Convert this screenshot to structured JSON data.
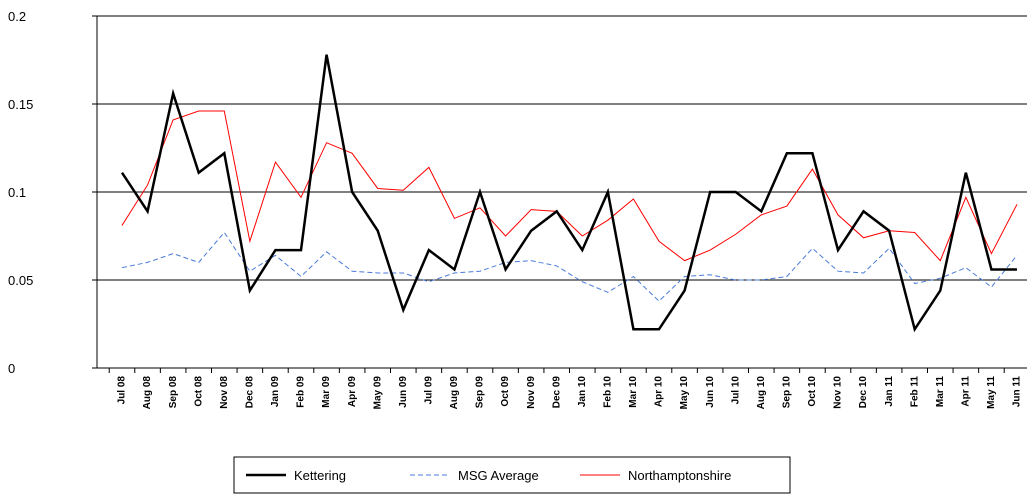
{
  "chart_data": {
    "type": "line",
    "categories": [
      "Jul 08",
      "Aug 08",
      "Sep 08",
      "Oct 08",
      "Nov 08",
      "Dec 08",
      "Jan 09",
      "Feb 09",
      "Mar 09",
      "Apr 09",
      "May 09",
      "Jun 09",
      "Jul 09",
      "Aug 09",
      "Sep 09",
      "Oct 09",
      "Nov 09",
      "Dec 09",
      "Jan 10",
      "Feb 10",
      "Mar 10",
      "Apr 10",
      "May 10",
      "Jun 10",
      "Jul 10",
      "Aug 10",
      "Sep 10",
      "Oct 10",
      "Nov 10",
      "Dec 10",
      "Jan 11",
      "Feb 11",
      "Mar 11",
      "Apr 11",
      "May 11",
      "Jun 11"
    ],
    "series": [
      {
        "name": "Kettering",
        "color": "#000000",
        "line_width": 2.5,
        "dashed": false,
        "values": [
          0.111,
          0.089,
          0.156,
          0.111,
          0.122,
          0.044,
          0.067,
          0.067,
          0.178,
          0.1,
          0.078,
          0.033,
          0.067,
          0.056,
          0.1,
          0.056,
          0.078,
          0.089,
          0.067,
          0.1,
          0.022,
          0.022,
          0.044,
          0.1,
          0.1,
          0.089,
          0.122,
          0.122,
          0.067,
          0.089,
          0.078,
          0.022,
          0.044,
          0.111,
          0.056,
          0.056
        ]
      },
      {
        "name": "MSG Average",
        "color": "#4a7bd9",
        "line_width": 1,
        "dashed": true,
        "values": [
          0.057,
          0.06,
          0.065,
          0.06,
          0.077,
          0.055,
          0.064,
          0.052,
          0.066,
          0.055,
          0.054,
          0.054,
          0.049,
          0.054,
          0.055,
          0.06,
          0.061,
          0.058,
          0.049,
          0.043,
          0.052,
          0.038,
          0.052,
          0.053,
          0.05,
          0.05,
          0.052,
          0.068,
          0.055,
          0.054,
          0.068,
          0.048,
          0.051,
          0.057,
          0.046,
          0.064
        ]
      },
      {
        "name": "Northamptonshire",
        "color": "#ff0000",
        "line_width": 1,
        "dashed": false,
        "values": [
          0.081,
          0.104,
          0.141,
          0.146,
          0.146,
          0.072,
          0.117,
          0.097,
          0.128,
          0.122,
          0.102,
          0.101,
          0.114,
          0.085,
          0.091,
          0.075,
          0.09,
          0.089,
          0.075,
          0.084,
          0.096,
          0.072,
          0.061,
          0.067,
          0.076,
          0.087,
          0.092,
          0.113,
          0.087,
          0.074,
          0.078,
          0.077,
          0.061,
          0.097,
          0.065,
          0.093
        ]
      }
    ],
    "ylim": [
      0,
      0.2
    ],
    "yticks": [
      0,
      0.05,
      0.1,
      0.15,
      0.2
    ],
    "grid": true,
    "legend": "bottom"
  }
}
